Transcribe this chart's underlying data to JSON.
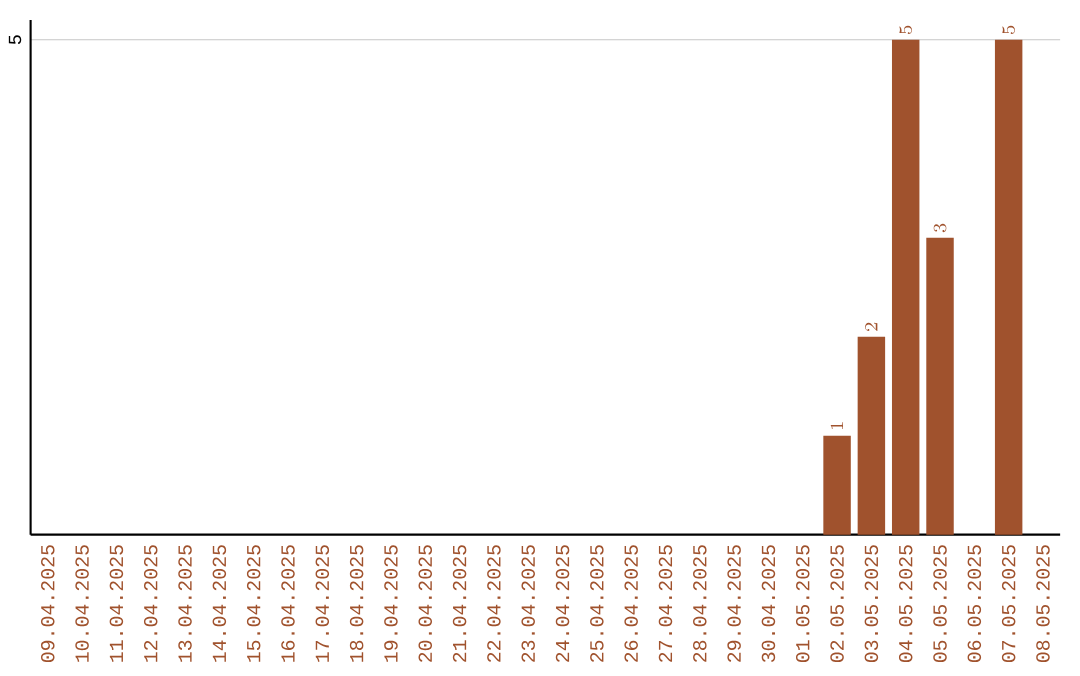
{
  "chart_data": {
    "type": "bar",
    "categories": [
      "09.04.2025",
      "10.04.2025",
      "11.04.2025",
      "12.04.2025",
      "13.04.2025",
      "14.04.2025",
      "15.04.2025",
      "16.04.2025",
      "17.04.2025",
      "18.04.2025",
      "19.04.2025",
      "20.04.2025",
      "21.04.2025",
      "22.04.2025",
      "23.04.2025",
      "24.04.2025",
      "25.04.2025",
      "26.04.2025",
      "27.04.2025",
      "28.04.2025",
      "29.04.2025",
      "30.04.2025",
      "01.05.2025",
      "02.05.2025",
      "03.05.2025",
      "04.05.2025",
      "05.05.2025",
      "06.05.2025",
      "07.05.2025",
      "08.05.2025"
    ],
    "values": [
      null,
      null,
      null,
      null,
      null,
      null,
      null,
      null,
      null,
      null,
      null,
      null,
      null,
      null,
      null,
      null,
      null,
      null,
      null,
      null,
      null,
      null,
      null,
      1,
      2,
      5,
      3,
      null,
      5,
      null
    ],
    "color": "#a0522d",
    "ylim": [
      0,
      5.2
    ],
    "yticks": [
      5
    ],
    "grid": "y",
    "data_labels": true
  }
}
